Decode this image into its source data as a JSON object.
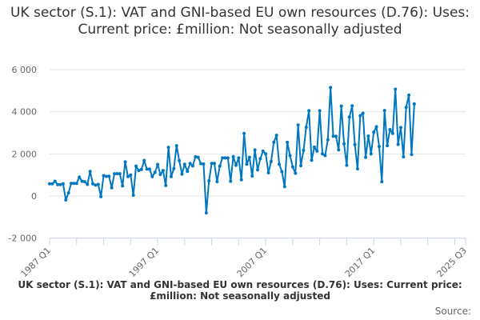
{
  "chart_data": {
    "type": "line",
    "title": "UK sector (S.1): VAT and GNI-based EU own resources (D.76): Uses: Current price: £million: Not seasonally adjusted",
    "xlabel": "",
    "ylabel": "",
    "x_start": "1987 Q1",
    "x_end": "2020 Q4",
    "xlim": [
      "1987 Q1",
      "2025 Q3"
    ],
    "ylim": [
      -2000,
      6000
    ],
    "y_ticks": [
      -2000,
      0,
      2000,
      4000,
      6000
    ],
    "y_tick_labels": [
      "-2 000",
      "0",
      "2 000",
      "4 000",
      "6 000"
    ],
    "x_tick_labels": [
      "1987 Q1",
      "1997 Q1",
      "2007 Q1",
      "2017 Q1",
      "2025 Q3"
    ],
    "grid": true,
    "legend_placement": "bottom",
    "series": [
      {
        "name": "UK sector (S.1): VAT and GNI-based EU own resources (D.76): Uses: Current price: £million: Not seasonally adjusted",
        "color": "#0077c0",
        "values": [
          580,
          580,
          700,
          540,
          540,
          580,
          -190,
          150,
          600,
          600,
          600,
          900,
          700,
          680,
          550,
          1170,
          580,
          520,
          550,
          -30,
          970,
          930,
          940,
          390,
          1060,
          1060,
          1060,
          480,
          1620,
          920,
          1000,
          40,
          1420,
          1210,
          1260,
          1690,
          1280,
          1280,
          920,
          1120,
          1500,
          1020,
          1210,
          500,
          2310,
          920,
          1300,
          2390,
          1680,
          1040,
          1510,
          1170,
          1550,
          1430,
          1860,
          1840,
          1540,
          1520,
          -800,
          720,
          1550,
          1550,
          680,
          1420,
          1810,
          1810,
          1810,
          700,
          1870,
          1460,
          1810,
          770,
          2970,
          1510,
          1840,
          950,
          2190,
          1240,
          1770,
          2130,
          2000,
          1100,
          1640,
          2550,
          2880,
          1510,
          1160,
          440,
          2550,
          1920,
          1380,
          1080,
          3370,
          1440,
          2170,
          3260,
          4050,
          1700,
          2320,
          2130,
          4050,
          2000,
          1920,
          2670,
          5150,
          2840,
          2840,
          2190,
          4270,
          2480,
          1460,
          3750,
          4280,
          2440,
          1290,
          3810,
          3930,
          1840,
          2850,
          2000,
          3030,
          3290,
          2350,
          680,
          4060,
          2390,
          3150,
          2970,
          5070,
          2450,
          3250,
          1860,
          4210,
          4790,
          1970,
          4370
        ]
      }
    ]
  },
  "footer": {
    "source_label": "Source:"
  }
}
